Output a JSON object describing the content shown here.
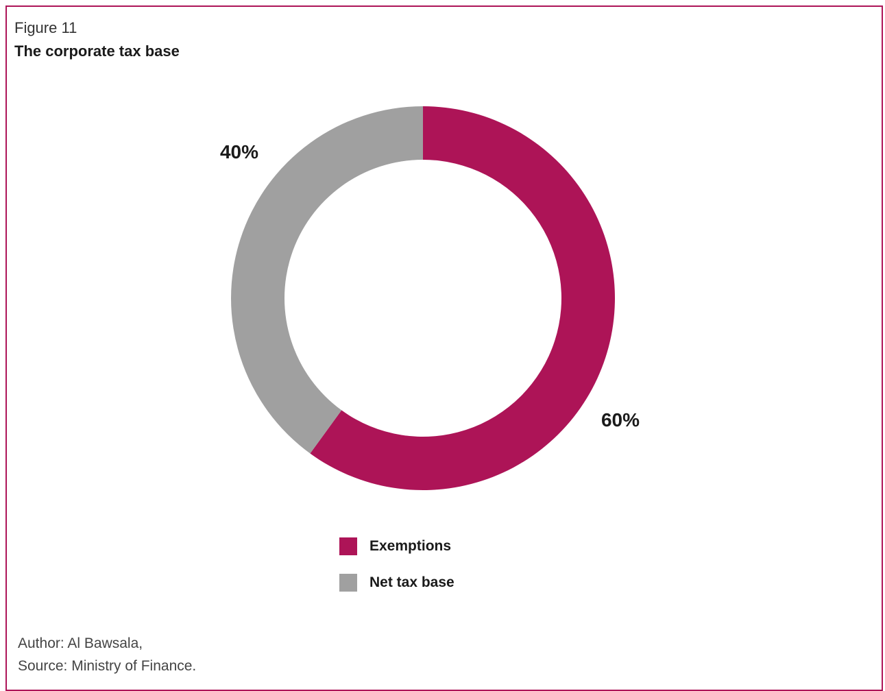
{
  "figure": {
    "label": "Figure 11",
    "title": "The corporate tax base"
  },
  "colors": {
    "frame": "#ad1457",
    "exemptions": "#ad1457",
    "net_tax_base": "#a0a0a0"
  },
  "chart_data": {
    "type": "pie",
    "donut": true,
    "title": "The corporate tax base",
    "slices": [
      {
        "label": "Exemptions",
        "value": 60,
        "display": "60%",
        "color": "#ad1457"
      },
      {
        "label": "Net tax base",
        "value": 40,
        "display": "40%",
        "color": "#a0a0a0"
      }
    ],
    "legend": {
      "placement": "bottom",
      "entries": [
        "Exemptions",
        "Net tax base"
      ]
    }
  },
  "footer": {
    "author": "Author: Al Bawsala,",
    "source": "Source: Ministry of Finance."
  }
}
